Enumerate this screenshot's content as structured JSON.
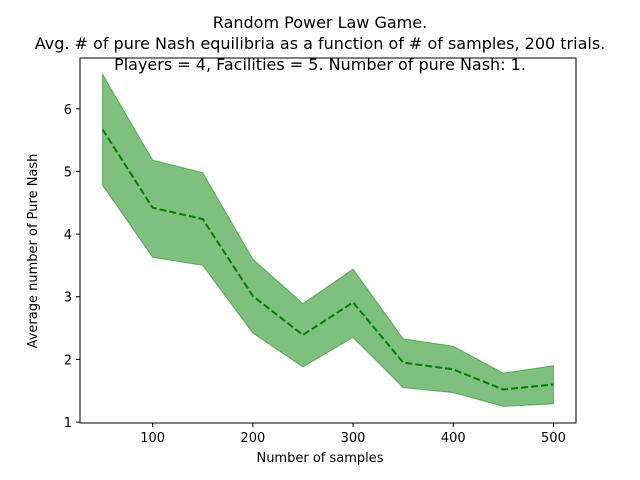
{
  "chart_data": {
    "type": "line",
    "title_lines": [
      "Random Power Law Game.",
      "Avg. # of pure Nash equilibria as a function of # of samples, 200 trials.",
      "Players = 4, Facilities = 5. Number of pure Nash: 1."
    ],
    "xlabel": "Number of samples",
    "ylabel": "Average number of Pure Nash",
    "x": [
      50,
      100,
      150,
      200,
      250,
      300,
      350,
      400,
      450,
      500
    ],
    "series": [
      {
        "values": [
          5.67,
          4.42,
          4.24,
          3.01,
          2.39,
          2.91,
          1.95,
          1.84,
          1.52,
          1.6
        ],
        "upper": [
          6.55,
          5.18,
          4.98,
          3.6,
          2.89,
          3.44,
          2.33,
          2.21,
          1.78,
          1.9
        ],
        "lower": [
          4.78,
          3.63,
          3.5,
          2.42,
          1.88,
          2.35,
          1.55,
          1.47,
          1.25,
          1.29
        ],
        "line_color": "#008000",
        "band_color": "#008000",
        "line_style": "dashed"
      }
    ],
    "xticks": [
      100,
      200,
      300,
      400,
      500
    ],
    "yticks": [
      1,
      2,
      3,
      4,
      5,
      6
    ],
    "xlim": [
      27.5,
      522.5
    ],
    "ylim": [
      0.985,
      6.81
    ],
    "grid": false
  }
}
